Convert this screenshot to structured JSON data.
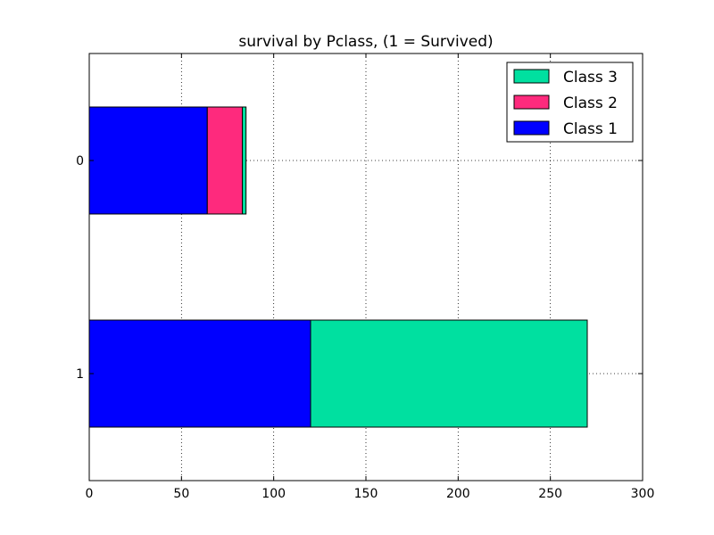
{
  "chart_data": {
    "type": "bar",
    "orientation": "horizontal",
    "stacked": true,
    "title": "survival by Pclass, (1 = Survived)",
    "xlabel": "",
    "ylabel": "",
    "categories": [
      "0",
      "1"
    ],
    "xlim": [
      0,
      300
    ],
    "xticks": [
      0,
      50,
      100,
      150,
      200,
      250,
      300
    ],
    "grid": true,
    "legend_position": "top-right",
    "series": [
      {
        "name": "Class 1",
        "color": "#0000ff",
        "values": [
          64,
          120
        ]
      },
      {
        "name": "Class 2",
        "color": "#fe2a7d",
        "values": [
          19,
          0
        ]
      },
      {
        "name": "Class 3",
        "color": "#00e0a0",
        "values": [
          2,
          150
        ]
      }
    ]
  }
}
